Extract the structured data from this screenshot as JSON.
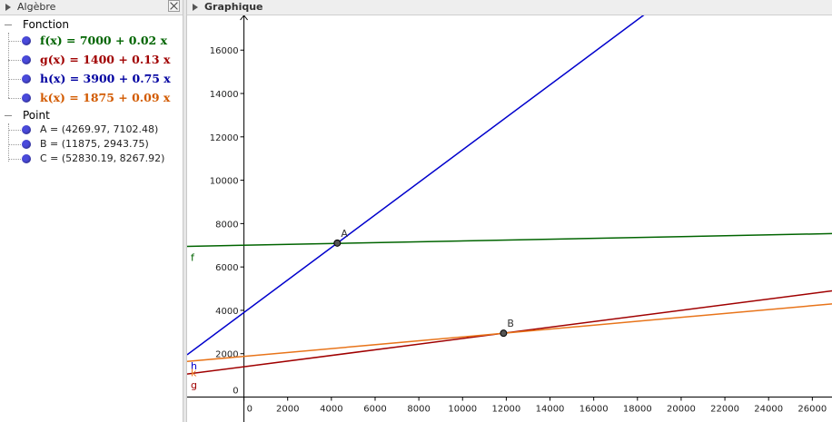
{
  "algebra": {
    "title": "Algèbre",
    "groups": [
      {
        "label": "Fonction",
        "items": [
          {
            "text": "f(x) = 7000 + 0.02 x",
            "color": "#006400"
          },
          {
            "text": "g(x) = 1400 + 0.13 x",
            "color": "#a00000"
          },
          {
            "text": "h(x) = 3900 + 0.75 x",
            "color": "#0000a0"
          },
          {
            "text": "k(x) = 1875 + 0.09 x",
            "color": "#d25a00"
          }
        ]
      },
      {
        "label": "Point",
        "items": [
          {
            "text": "A = (4269.97, 7102.48)"
          },
          {
            "text": "B = (11875, 2943.75)"
          },
          {
            "text": "C = (52830.19, 8267.92)"
          }
        ]
      }
    ]
  },
  "graphics": {
    "title": "Graphique"
  },
  "chart_data": {
    "type": "line",
    "xlim": [
      -2600,
      26900
    ],
    "ylim": [
      -1150,
      17600
    ],
    "x_ticks": [
      0,
      2000,
      4000,
      6000,
      8000,
      10000,
      12000,
      14000,
      16000,
      18000,
      20000,
      22000,
      24000,
      26000
    ],
    "y_ticks": [
      0,
      2000,
      4000,
      6000,
      8000,
      10000,
      12000,
      14000,
      16000
    ],
    "grid": false,
    "series": [
      {
        "name": "f",
        "intercept": 7000,
        "slope": 0.02,
        "color": "#006400"
      },
      {
        "name": "g",
        "intercept": 1400,
        "slope": 0.13,
        "color": "#a00000"
      },
      {
        "name": "h",
        "intercept": 3900,
        "slope": 0.75,
        "color": "#0000cc"
      },
      {
        "name": "k",
        "intercept": 1875,
        "slope": 0.09,
        "color": "#e8741a"
      }
    ],
    "points": [
      {
        "name": "A",
        "x": 4269.97,
        "y": 7102.48
      },
      {
        "name": "B",
        "x": 11875,
        "y": 2943.75
      }
    ]
  }
}
